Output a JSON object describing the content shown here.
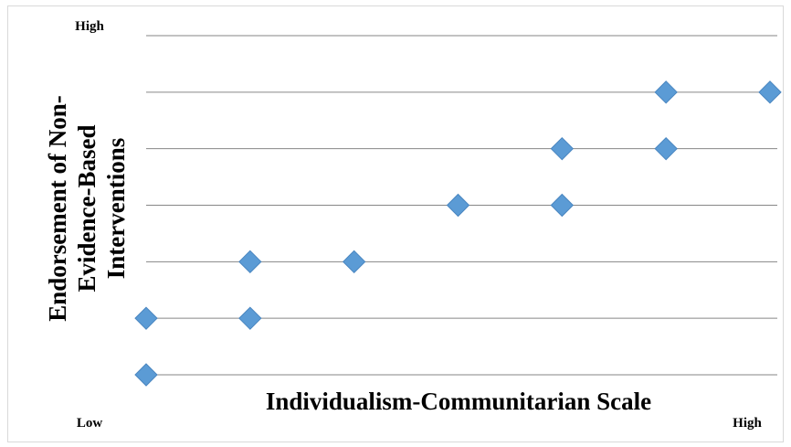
{
  "chart_data": {
    "type": "scatter",
    "xlabel": "Individualism-Communitarian Scale",
    "ylabel_lines": [
      "Endorsement of Non-",
      "Evidence-Based",
      "Interventions"
    ],
    "x_low_label": "Low",
    "x_high_label": "High",
    "y_high_label": "High",
    "xlim": [
      0,
      6
    ],
    "ylim": [
      0,
      6
    ],
    "grid": true,
    "marker_color": "#5b9bd5",
    "points": [
      {
        "x": 0,
        "y": 0
      },
      {
        "x": 0,
        "y": 1
      },
      {
        "x": 1,
        "y": 1
      },
      {
        "x": 1,
        "y": 2
      },
      {
        "x": 2,
        "y": 2
      },
      {
        "x": 3,
        "y": 3
      },
      {
        "x": 4,
        "y": 3
      },
      {
        "x": 4,
        "y": 4
      },
      {
        "x": 5,
        "y": 4
      },
      {
        "x": 5,
        "y": 5
      },
      {
        "x": 6,
        "y": 5
      }
    ]
  }
}
